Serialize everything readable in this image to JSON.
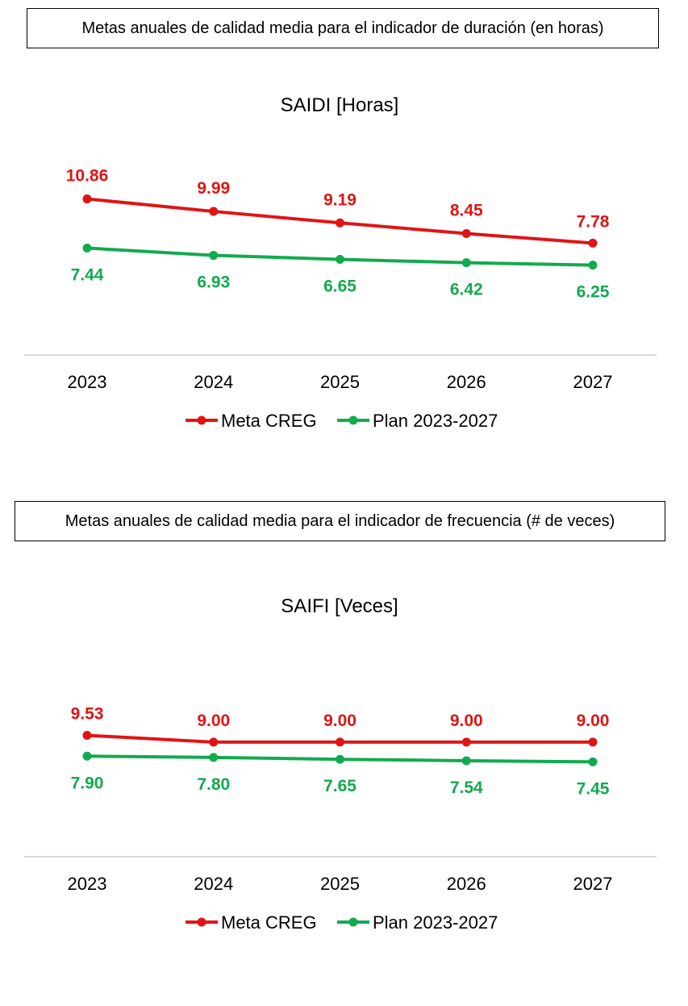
{
  "headers": {
    "duration": "Metas anuales de calidad media para el indicador de duración (en horas)",
    "frequency": "Metas anuales de calidad media para el indicador de frecuencia (# de veces)"
  },
  "colors": {
    "meta": "#e01414",
    "plan": "#12aa4f",
    "axis": "#d9d9d9"
  },
  "chart_data": [
    {
      "type": "line",
      "title": "SAIDI [Horas]",
      "categories": [
        "2023",
        "2024",
        "2025",
        "2026",
        "2027"
      ],
      "series": [
        {
          "name": "Meta CREG",
          "values": [
            10.86,
            9.99,
            9.19,
            8.45,
            7.78
          ],
          "labels": [
            "10.86",
            "9.99",
            "9.19",
            "8.45",
            "7.78"
          ],
          "color": "#e01414"
        },
        {
          "name": "Plan 2023-2027",
          "values": [
            7.44,
            6.93,
            6.65,
            6.42,
            6.25
          ],
          "labels": [
            "7.44",
            "6.93",
            "6.65",
            "6.42",
            "6.25"
          ],
          "color": "#12aa4f"
        }
      ],
      "ylim": [
        0,
        16
      ],
      "grid": false,
      "legend": "bottom"
    },
    {
      "type": "line",
      "title": "SAIFI [Veces]",
      "categories": [
        "2023",
        "2024",
        "2025",
        "2026",
        "2027"
      ],
      "series": [
        {
          "name": "Meta CREG",
          "values": [
            9.53,
            9.0,
            9.0,
            9.0,
            9.0
          ],
          "labels": [
            "9.53",
            "9.00",
            "9.00",
            "9.00",
            "9.00"
          ],
          "color": "#e01414"
        },
        {
          "name": "Plan 2023-2027",
          "values": [
            7.9,
            7.8,
            7.65,
            7.54,
            7.45
          ],
          "labels": [
            "7.90",
            "7.80",
            "7.65",
            "7.54",
            "7.45"
          ],
          "color": "#12aa4f"
        }
      ],
      "ylim": [
        0,
        19
      ],
      "grid": false,
      "legend": "bottom"
    }
  ]
}
